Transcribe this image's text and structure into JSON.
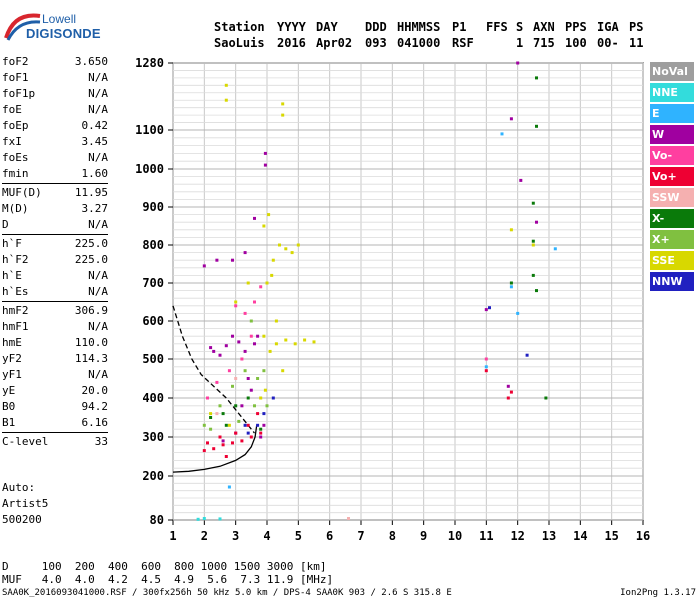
{
  "brand": {
    "line1": "Lowell",
    "line2": "DIGISONDE"
  },
  "header": {
    "labels": [
      "Station",
      "YYYY",
      "DAY",
      "DDD",
      "HHMMSS",
      "P1",
      "FFS",
      "S",
      "AXN",
      "PPS",
      "IGA",
      "PS"
    ],
    "values": [
      "SaoLuis",
      "2016",
      "Apr02",
      "093",
      "041000",
      "RSF",
      "1",
      "715",
      "100",
      "00-",
      "11"
    ]
  },
  "params_group1": [
    {
      "label": "foF2",
      "value": "3.650"
    },
    {
      "label": "foF1",
      "value": "N/A"
    },
    {
      "label": "foF1p",
      "value": "N/A"
    },
    {
      "label": "foE",
      "value": "N/A"
    },
    {
      "label": "foEp",
      "value": "0.42"
    },
    {
      "label": "fxI",
      "value": "3.45"
    },
    {
      "label": "foEs",
      "value": "N/A"
    },
    {
      "label": "fmin",
      "value": "1.60"
    }
  ],
  "params_group2": [
    {
      "label": "MUF(D)",
      "value": "11.95"
    },
    {
      "label": "M(D)",
      "value": "3.27"
    },
    {
      "label": "D",
      "value": "N/A"
    }
  ],
  "params_group3": [
    {
      "label": "h`F",
      "value": "225.0"
    },
    {
      "label": "h`F2",
      "value": "225.0"
    },
    {
      "label": "h`E",
      "value": "N/A"
    },
    {
      "label": "h`Es",
      "value": "N/A"
    }
  ],
  "params_group4": [
    {
      "label": "hmF2",
      "value": "306.9"
    },
    {
      "label": "hmF1",
      "value": "N/A"
    },
    {
      "label": "hmE",
      "value": "110.0"
    },
    {
      "label": "yF2",
      "value": "114.3"
    },
    {
      "label": "yF1",
      "value": "N/A"
    },
    {
      "label": "yE",
      "value": "20.0"
    },
    {
      "label": "B0",
      "value": "94.2"
    },
    {
      "label": "B1",
      "value": "6.16"
    }
  ],
  "params_group5": [
    {
      "label": "C-level",
      "value": "33"
    }
  ],
  "auto": {
    "line1": "Auto:",
    "line2": "Artist5",
    "line3": "500200"
  },
  "legend": [
    {
      "name": "NoVal",
      "color": "#9e9e9e"
    },
    {
      "name": "NNE",
      "color": "#33dcdc"
    },
    {
      "name": "E",
      "color": "#2fb3ff"
    },
    {
      "name": "W",
      "color": "#a000a0"
    },
    {
      "name": "Vo-",
      "color": "#ff3fa0"
    },
    {
      "name": "Vo+",
      "color": "#ee0033"
    },
    {
      "name": "SSW",
      "color": "#f5b0b0"
    },
    {
      "name": "X-",
      "color": "#0a7a0a"
    },
    {
      "name": "X+",
      "color": "#80c040"
    },
    {
      "name": "SSE",
      "color": "#d8d800"
    },
    {
      "name": "NNW",
      "color": "#2020c0"
    }
  ],
  "muf_table": {
    "row1": "D     100  200  400  600  800 1000 1500 3000 [km]",
    "row2": "MUF   4.0  4.0  4.2  4.5  4.9  5.6  7.3 11.9 [MHz]"
  },
  "footer": {
    "left": "SAA0K_2016093041000.RSF / 300fx256h 50 kHz 5.0 km / DPS-4 SAA0K 903 / 2.6 S 315.8 E",
    "right": "Ion2Png 1.3.17"
  },
  "chart_data": {
    "type": "scatter",
    "xlim": [
      1,
      16
    ],
    "ylim": [
      80,
      1280
    ],
    "x_ticks": [
      "1",
      "2",
      "3",
      "4",
      "5",
      "6",
      "7",
      "8",
      "9",
      "10",
      "11",
      "12",
      "13",
      "14",
      "15",
      "16"
    ],
    "y_ticks": [
      "80",
      "200",
      "300",
      "400",
      "500",
      "600",
      "700",
      "800",
      "900",
      "1000",
      "1100",
      "1280"
    ],
    "grid": true,
    "y_scale_note": "nonlinear",
    "series": [
      {
        "name": "W",
        "color": "#a000a0",
        "points": [
          [
            2.7,
            535
          ],
          [
            2.9,
            560
          ],
          [
            3.1,
            545
          ],
          [
            3.3,
            520
          ],
          [
            3.6,
            540
          ],
          [
            3.7,
            560
          ],
          [
            3.8,
            300
          ],
          [
            3.9,
            330
          ],
          [
            3.5,
            420
          ],
          [
            3.4,
            450
          ],
          [
            3.2,
            380
          ],
          [
            3.0,
            310
          ],
          [
            2.6,
            290
          ],
          [
            2.5,
            510
          ],
          [
            2.3,
            520
          ],
          [
            2.2,
            530
          ],
          [
            3.95,
            1010
          ],
          [
            3.95,
            1040
          ],
          [
            3.6,
            870
          ],
          [
            3.3,
            780
          ],
          [
            2.9,
            760
          ],
          [
            2.4,
            760
          ],
          [
            2.0,
            745
          ],
          [
            12.0,
            1280
          ],
          [
            11.8,
            1130
          ],
          [
            12.6,
            860
          ],
          [
            11.0,
            630
          ],
          [
            12.1,
            970
          ],
          [
            11.7,
            430
          ]
        ]
      },
      {
        "name": "Vo+",
        "color": "#ee0033",
        "points": [
          [
            2.0,
            265
          ],
          [
            2.3,
            270
          ],
          [
            2.6,
            280
          ],
          [
            2.9,
            285
          ],
          [
            3.2,
            290
          ],
          [
            3.5,
            300
          ],
          [
            3.8,
            310
          ],
          [
            2.1,
            285
          ],
          [
            2.5,
            300
          ],
          [
            3.0,
            310
          ],
          [
            3.4,
            330
          ],
          [
            3.7,
            360
          ],
          [
            2.7,
            250
          ],
          [
            11.0,
            470
          ],
          [
            11.7,
            400
          ],
          [
            11.8,
            415
          ]
        ]
      },
      {
        "name": "Vo-",
        "color": "#ff3fa0",
        "points": [
          [
            3.3,
            620
          ],
          [
            3.6,
            650
          ],
          [
            3.8,
            690
          ],
          [
            3.5,
            560
          ],
          [
            3.2,
            500
          ],
          [
            2.8,
            470
          ],
          [
            2.4,
            440
          ],
          [
            2.1,
            400
          ],
          [
            3.0,
            640
          ],
          [
            11.0,
            500
          ]
        ]
      },
      {
        "name": "SSE",
        "color": "#d8d800",
        "points": [
          [
            3.9,
            560
          ],
          [
            4.1,
            520
          ],
          [
            4.3,
            540
          ],
          [
            4.6,
            550
          ],
          [
            4.9,
            540
          ],
          [
            5.2,
            550
          ],
          [
            5.5,
            545
          ],
          [
            4.0,
            700
          ],
          [
            4.2,
            760
          ],
          [
            4.4,
            800
          ],
          [
            4.6,
            790
          ],
          [
            4.8,
            780
          ],
          [
            5.0,
            800
          ],
          [
            3.9,
            850
          ],
          [
            4.05,
            880
          ],
          [
            4.15,
            720
          ],
          [
            4.3,
            600
          ],
          [
            4.5,
            470
          ],
          [
            3.95,
            420
          ],
          [
            3.8,
            400
          ],
          [
            2.7,
            1220
          ],
          [
            2.7,
            1180
          ],
          [
            4.5,
            1170
          ],
          [
            4.5,
            1140
          ],
          [
            3.0,
            650
          ],
          [
            2.8,
            330
          ],
          [
            2.2,
            360
          ],
          [
            3.4,
            700
          ],
          [
            11.8,
            840
          ],
          [
            12.5,
            800
          ]
        ]
      },
      {
        "name": "X+",
        "color": "#80c040",
        "points": [
          [
            3.5,
            600
          ],
          [
            3.7,
            450
          ],
          [
            3.3,
            470
          ],
          [
            2.9,
            430
          ],
          [
            2.5,
            380
          ],
          [
            2.2,
            320
          ],
          [
            2.0,
            330
          ],
          [
            3.1,
            340
          ],
          [
            3.6,
            380
          ],
          [
            3.9,
            470
          ],
          [
            4.0,
            380
          ]
        ]
      },
      {
        "name": "X-",
        "color": "#0a7a0a",
        "points": [
          [
            2.6,
            360
          ],
          [
            3.0,
            380
          ],
          [
            3.4,
            400
          ],
          [
            3.8,
            320
          ],
          [
            2.2,
            350
          ],
          [
            2.7,
            330
          ],
          [
            12.6,
            1240
          ],
          [
            12.6,
            1110
          ],
          [
            12.5,
            910
          ],
          [
            12.5,
            810
          ],
          [
            12.5,
            720
          ],
          [
            12.9,
            400
          ],
          [
            11.8,
            700
          ],
          [
            12.6,
            680
          ]
        ]
      },
      {
        "name": "NNW",
        "color": "#2020c0",
        "points": [
          [
            3.7,
            330
          ],
          [
            3.4,
            310
          ],
          [
            3.9,
            360
          ],
          [
            3.3,
            330
          ],
          [
            4.2,
            400
          ],
          [
            12.3,
            510
          ],
          [
            11.1,
            635
          ]
        ]
      },
      {
        "name": "E",
        "color": "#2fb3ff",
        "points": [
          [
            11.5,
            1090
          ],
          [
            11.8,
            690
          ],
          [
            12.0,
            620
          ],
          [
            13.2,
            790
          ],
          [
            11.0,
            480
          ],
          [
            2.8,
            170
          ]
        ]
      },
      {
        "name": "NNE",
        "color": "#33dcdc",
        "points": [
          [
            1.8,
            82
          ],
          [
            2.0,
            84
          ],
          [
            2.5,
            83
          ]
        ]
      },
      {
        "name": "SSW",
        "color": "#f5b0b0",
        "points": [
          [
            6.6,
            84
          ],
          [
            2.4,
            360
          ],
          [
            3.0,
            450
          ]
        ]
      }
    ],
    "curves": [
      {
        "name": "profile",
        "style": "solid",
        "points": [
          [
            1.0,
            210
          ],
          [
            1.5,
            212
          ],
          [
            2.0,
            217
          ],
          [
            2.5,
            225
          ],
          [
            3.0,
            240
          ],
          [
            3.3,
            255
          ],
          [
            3.5,
            275
          ],
          [
            3.62,
            300
          ],
          [
            3.67,
            330
          ]
        ]
      },
      {
        "name": "trace",
        "style": "dashed",
        "points": [
          [
            1.0,
            640
          ],
          [
            1.3,
            560
          ],
          [
            1.6,
            500
          ],
          [
            1.9,
            460
          ],
          [
            2.3,
            430
          ],
          [
            2.7,
            400
          ],
          [
            3.1,
            360
          ],
          [
            3.4,
            330
          ],
          [
            3.6,
            310
          ]
        ]
      }
    ]
  }
}
